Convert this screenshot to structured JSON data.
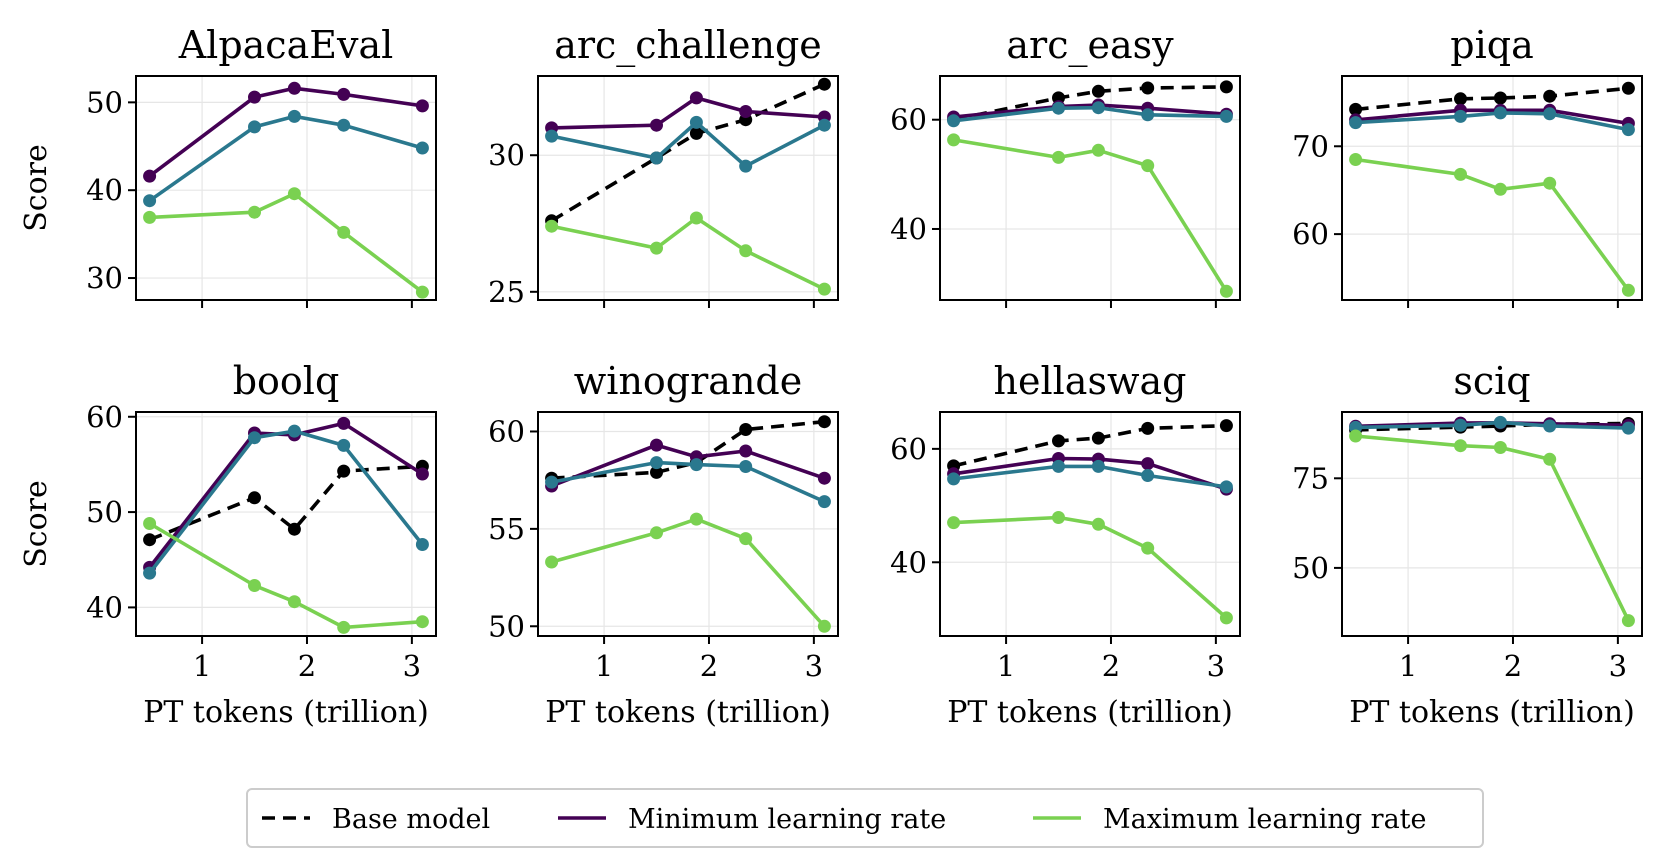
{
  "colors": {
    "base": "#000000",
    "min_lr": "#440154",
    "mid_lr": "#2a788e",
    "max_lr": "#7ad151"
  },
  "legend": [
    {
      "label": "Base model",
      "style": "dashed",
      "color": "#000000"
    },
    {
      "label": "Minimum learning rate",
      "style": "solid",
      "color": "#440154"
    },
    {
      "label": "Maximum learning rate",
      "style": "solid",
      "color": "#7ad151"
    }
  ],
  "chart_data": [
    {
      "type": "line",
      "title": "AlpacaEval",
      "ylabel": "Score",
      "xlabel": "",
      "x": [
        0.5,
        1.5,
        1.88,
        2.35,
        3.1
      ],
      "xticks": [
        1,
        2,
        3
      ],
      "xlim": [
        0.37,
        3.23
      ],
      "ylim": [
        27.5,
        53
      ],
      "yticks": [
        30,
        40,
        50
      ],
      "series": [
        {
          "name": "Base model",
          "color": "#000000",
          "dashed": true,
          "values": [
            null,
            null,
            null,
            null,
            null
          ]
        },
        {
          "name": "Minimum learning rate",
          "color": "#440154",
          "values": [
            41.6,
            50.6,
            51.6,
            50.9,
            49.6
          ]
        },
        {
          "name": "",
          "color": "#2a788e",
          "values": [
            38.8,
            47.2,
            48.4,
            47.4,
            44.8
          ]
        },
        {
          "name": "Maximum learning rate",
          "color": "#7ad151",
          "values": [
            36.9,
            37.5,
            39.6,
            35.2,
            28.4
          ]
        }
      ]
    },
    {
      "type": "line",
      "title": "arc_challenge",
      "ylabel": "",
      "xlabel": "",
      "x": [
        0.5,
        1.5,
        1.88,
        2.35,
        3.1
      ],
      "xticks": [
        1,
        2,
        3
      ],
      "xlim": [
        0.37,
        3.23
      ],
      "ylim": [
        24.7,
        32.9
      ],
      "yticks": [
        25,
        30
      ],
      "series": [
        {
          "name": "Base model",
          "color": "#000000",
          "dashed": true,
          "values": [
            27.6,
            29.9,
            30.8,
            31.3,
            32.6
          ]
        },
        {
          "name": "Minimum learning rate",
          "color": "#440154",
          "values": [
            31.0,
            31.1,
            32.1,
            31.6,
            31.4
          ]
        },
        {
          "name": "",
          "color": "#2a788e",
          "values": [
            30.7,
            29.9,
            31.2,
            29.6,
            31.1
          ]
        },
        {
          "name": "Maximum learning rate",
          "color": "#7ad151",
          "values": [
            27.4,
            26.6,
            27.7,
            26.5,
            25.1
          ]
        }
      ]
    },
    {
      "type": "line",
      "title": "arc_easy",
      "ylabel": "",
      "xlabel": "",
      "x": [
        0.5,
        1.5,
        1.88,
        2.35,
        3.1
      ],
      "xticks": [
        1,
        2,
        3
      ],
      "xlim": [
        0.37,
        3.23
      ],
      "ylim": [
        27,
        68
      ],
      "yticks": [
        40,
        60
      ],
      "series": [
        {
          "name": "Base model",
          "color": "#000000",
          "dashed": true,
          "values": [
            60.0,
            64.0,
            65.2,
            65.8,
            66.0
          ]
        },
        {
          "name": "Minimum learning rate",
          "color": "#440154",
          "values": [
            60.5,
            62.4,
            62.7,
            62.1,
            61.0
          ]
        },
        {
          "name": "",
          "color": "#2a788e",
          "values": [
            59.8,
            62.1,
            62.2,
            60.9,
            60.6
          ]
        },
        {
          "name": "Maximum learning rate",
          "color": "#7ad151",
          "values": [
            56.3,
            53.1,
            54.4,
            51.6,
            28.6
          ]
        }
      ]
    },
    {
      "type": "line",
      "title": "piqa",
      "ylabel": "",
      "xlabel": "",
      "x": [
        0.5,
        1.5,
        1.88,
        2.35,
        3.1
      ],
      "xticks": [
        1,
        2,
        3
      ],
      "xlim": [
        0.37,
        3.23
      ],
      "ylim": [
        52.5,
        78
      ],
      "yticks": [
        60,
        70
      ],
      "series": [
        {
          "name": "Base model",
          "color": "#000000",
          "dashed": true,
          "values": [
            74.2,
            75.4,
            75.5,
            75.7,
            76.6
          ]
        },
        {
          "name": "Minimum learning rate",
          "color": "#440154",
          "values": [
            73.0,
            74.1,
            74.1,
            74.1,
            72.6
          ]
        },
        {
          "name": "",
          "color": "#2a788e",
          "values": [
            72.7,
            73.4,
            73.8,
            73.7,
            71.9
          ]
        },
        {
          "name": "Maximum learning rate",
          "color": "#7ad151",
          "values": [
            68.5,
            66.8,
            65.1,
            65.8,
            53.6
          ]
        }
      ]
    },
    {
      "type": "line",
      "title": "boolq",
      "ylabel": "Score",
      "xlabel": "PT tokens (trillion)",
      "x": [
        0.5,
        1.5,
        1.88,
        2.35,
        3.1
      ],
      "xticks": [
        1,
        2,
        3
      ],
      "xlim": [
        0.37,
        3.23
      ],
      "ylim": [
        37,
        60.5
      ],
      "yticks": [
        40,
        50,
        60
      ],
      "series": [
        {
          "name": "Base model",
          "color": "#000000",
          "dashed": true,
          "values": [
            47.1,
            51.5,
            48.2,
            54.3,
            54.8
          ]
        },
        {
          "name": "Minimum learning rate",
          "color": "#440154",
          "values": [
            44.2,
            58.3,
            58.1,
            59.3,
            54.0
          ]
        },
        {
          "name": "",
          "color": "#2a788e",
          "values": [
            43.6,
            57.8,
            58.5,
            57.0,
            46.6
          ]
        },
        {
          "name": "Maximum learning rate",
          "color": "#7ad151",
          "values": [
            48.8,
            42.3,
            40.6,
            37.9,
            38.5
          ]
        }
      ]
    },
    {
      "type": "line",
      "title": "winogrande",
      "ylabel": "",
      "xlabel": "PT tokens (trillion)",
      "x": [
        0.5,
        1.5,
        1.88,
        2.35,
        3.1
      ],
      "xticks": [
        1,
        2,
        3
      ],
      "xlim": [
        0.37,
        3.23
      ],
      "ylim": [
        49.5,
        61
      ],
      "yticks": [
        50,
        55,
        60
      ],
      "series": [
        {
          "name": "Base model",
          "color": "#000000",
          "dashed": true,
          "values": [
            57.6,
            57.9,
            58.4,
            60.1,
            60.5
          ]
        },
        {
          "name": "Minimum learning rate",
          "color": "#440154",
          "values": [
            57.2,
            59.3,
            58.7,
            59.0,
            57.6
          ]
        },
        {
          "name": "",
          "color": "#2a788e",
          "values": [
            57.4,
            58.4,
            58.3,
            58.2,
            56.4
          ]
        },
        {
          "name": "Maximum learning rate",
          "color": "#7ad151",
          "values": [
            53.3,
            54.8,
            55.5,
            54.5,
            50.0
          ]
        }
      ]
    },
    {
      "type": "line",
      "title": "hellaswag",
      "ylabel": "",
      "xlabel": "PT tokens (trillion)",
      "x": [
        0.5,
        1.5,
        1.88,
        2.35,
        3.1
      ],
      "xticks": [
        1,
        2,
        3
      ],
      "xlim": [
        0.37,
        3.23
      ],
      "ylim": [
        27,
        66.5
      ],
      "yticks": [
        40,
        60
      ],
      "series": [
        {
          "name": "Base model",
          "color": "#000000",
          "dashed": true,
          "values": [
            57.0,
            61.4,
            61.9,
            63.6,
            64.1
          ]
        },
        {
          "name": "Minimum learning rate",
          "color": "#440154",
          "values": [
            55.6,
            58.3,
            58.2,
            57.4,
            52.9
          ]
        },
        {
          "name": "",
          "color": "#2a788e",
          "values": [
            54.7,
            56.9,
            56.9,
            55.3,
            53.3
          ]
        },
        {
          "name": "Maximum learning rate",
          "color": "#7ad151",
          "values": [
            47.0,
            47.9,
            46.7,
            42.5,
            30.2
          ]
        }
      ]
    },
    {
      "type": "line",
      "title": "sciq",
      "ylabel": "",
      "xlabel": "PT tokens (trillion)",
      "x": [
        0.5,
        1.5,
        1.88,
        2.35,
        3.1
      ],
      "xticks": [
        1,
        2,
        3
      ],
      "xlim": [
        0.37,
        3.23
      ],
      "ylim": [
        31,
        93.5
      ],
      "yticks": [
        50,
        75
      ],
      "series": [
        {
          "name": "Base model",
          "color": "#000000",
          "dashed": true,
          "values": [
            88.5,
            89.3,
            89.6,
            90.1,
            90.3
          ]
        },
        {
          "name": "Minimum learning rate",
          "color": "#440154",
          "values": [
            89.5,
            90.4,
            90.5,
            90.2,
            89.8
          ]
        },
        {
          "name": "",
          "color": "#2a788e",
          "values": [
            89.2,
            89.8,
            90.6,
            89.6,
            89.0
          ]
        },
        {
          "name": "Maximum learning rate",
          "color": "#7ad151",
          "values": [
            86.8,
            84.1,
            83.6,
            80.3,
            35.3
          ]
        }
      ]
    }
  ]
}
